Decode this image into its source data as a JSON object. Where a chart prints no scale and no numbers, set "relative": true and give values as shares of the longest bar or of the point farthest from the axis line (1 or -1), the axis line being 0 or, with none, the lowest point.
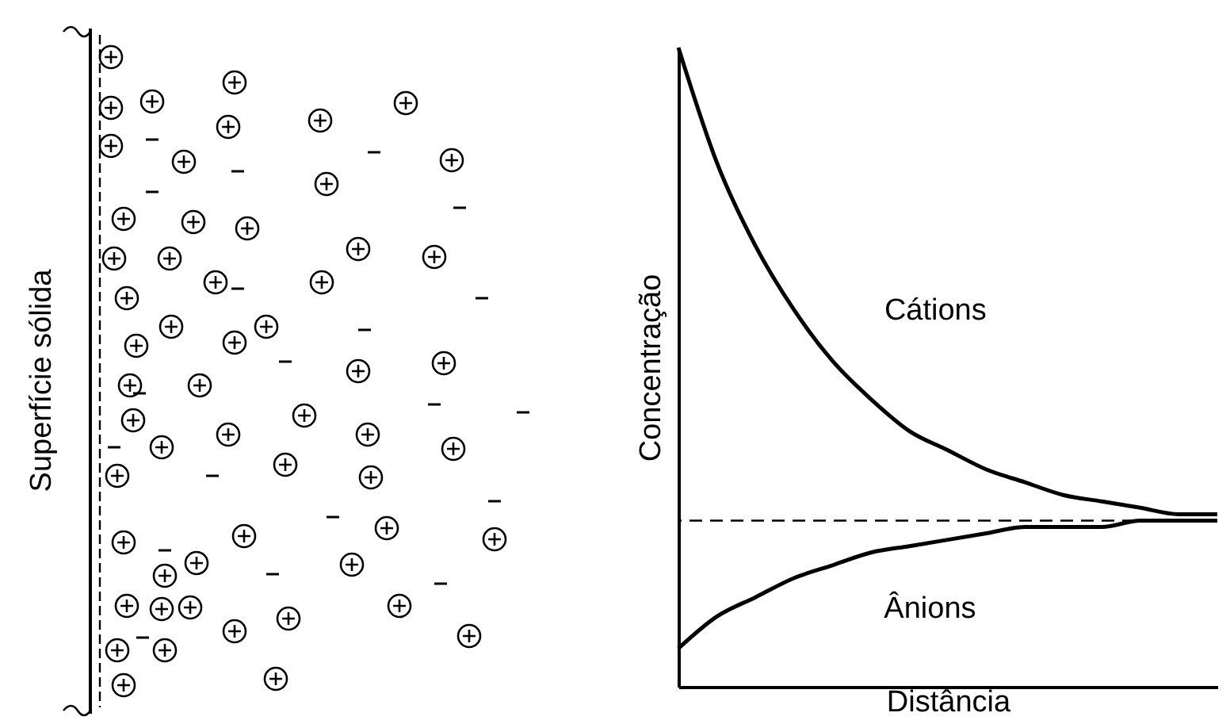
{
  "chart_data": {
    "type": "line",
    "relative": true,
    "xlabel": "Distância",
    "ylabel": "Concentração",
    "categories": [
      null,
      null,
      null,
      null,
      null,
      null,
      null,
      null,
      null,
      null,
      null,
      null,
      null,
      null,
      null
    ],
    "series": [
      {
        "name": "Cátions",
        "color": "#000000",
        "values": [
          1.0,
          0.82,
          0.69,
          0.59,
          0.51,
          0.45,
          0.4,
          0.37,
          0.34,
          0.32,
          0.3,
          0.29,
          0.28,
          0.27,
          0.27
        ]
      },
      {
        "name": "Ânions",
        "color": "#000000",
        "values": [
          0.06,
          0.11,
          0.14,
          0.17,
          0.19,
          0.21,
          0.22,
          0.23,
          0.24,
          0.25,
          0.25,
          0.25,
          0.26,
          0.26,
          0.26
        ]
      }
    ],
    "ref_lines": [
      {
        "axis": "y",
        "value": 0.26,
        "color": "#000000",
        "line_style": "dashed"
      }
    ],
    "annotations": [
      "Superfície sólida"
    ]
  }
}
